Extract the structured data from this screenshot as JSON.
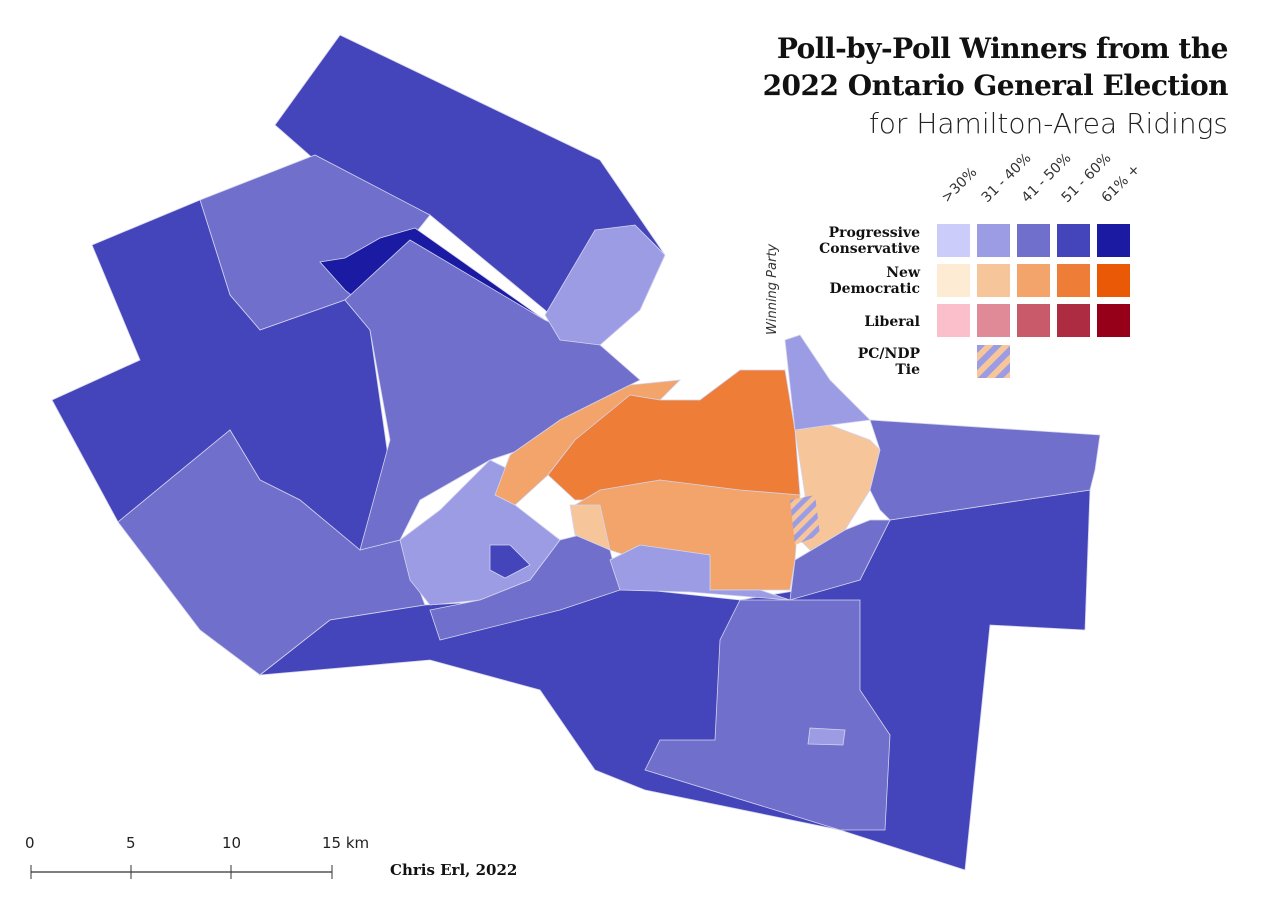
{
  "title": {
    "line1": "Poll-by-Poll Winners from the",
    "line2": "2022 Ontario General Election",
    "line3": "for Hamilton-Area Ridings"
  },
  "legend": {
    "axis_label": "Winning Party",
    "bins": [
      ">30%",
      "31 - 40%",
      "41 - 50%",
      "51 - 60%",
      "61% +"
    ],
    "parties": [
      {
        "name_line1": "Progressive",
        "name_line2": "Conservative",
        "colors": [
          "#ccccfa",
          "#9c9ce4",
          "#7070cc",
          "#4444bb",
          "#1a1aa3"
        ]
      },
      {
        "name_line1": "New",
        "name_line2": "Democratic",
        "colors": [
          "#fdebd3",
          "#f7c59a",
          "#f2a46a",
          "#ee7d38",
          "#ea5a06"
        ]
      },
      {
        "name_line1": "Liberal",
        "name_line2": "",
        "colors": [
          "#fbbfcc",
          "#e08a98",
          "#c85a6a",
          "#ad2c42",
          "#960018"
        ]
      },
      {
        "name_line1": "PC/NDP",
        "name_line2": "Tie",
        "colors": [
          "#9c9ce4",
          "#f7c59a"
        ]
      }
    ]
  },
  "scale_bar": {
    "labels": [
      "0",
      "5",
      "10",
      "15 km"
    ]
  },
  "credit": "Chris Erl, 2022"
}
